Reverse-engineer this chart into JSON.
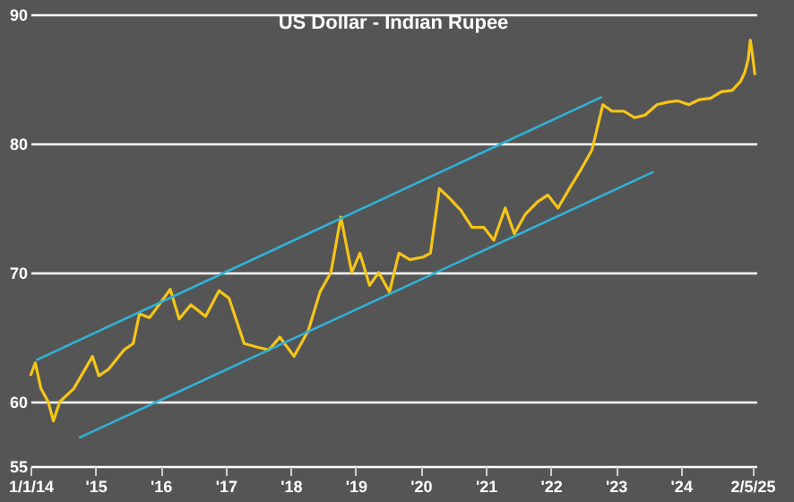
{
  "chart_data": {
    "type": "line",
    "title": "US Dollar - Indian Rupee",
    "xlim": [
      "2014-01-01",
      "2025-02-28"
    ],
    "ylim": [
      55,
      90
    ],
    "yticks": [
      55,
      60,
      70,
      80,
      90
    ],
    "xticks": [
      {
        "value": "2014-01-01",
        "label": "1/1/14"
      },
      {
        "value": "2015-01-01",
        "label": "'15"
      },
      {
        "value": "2016-01-01",
        "label": "'16"
      },
      {
        "value": "2017-01-01",
        "label": "'17"
      },
      {
        "value": "2018-01-01",
        "label": "'18"
      },
      {
        "value": "2019-01-01",
        "label": "'19"
      },
      {
        "value": "2020-01-01",
        "label": "'20"
      },
      {
        "value": "2021-01-01",
        "label": "'21"
      },
      {
        "value": "2022-01-01",
        "label": "'22"
      },
      {
        "value": "2023-01-01",
        "label": "'23"
      },
      {
        "value": "2024-01-01",
        "label": "'24"
      },
      {
        "value": "2025-02-05",
        "label": "2/5/25"
      }
    ],
    "grid": "y",
    "series": [
      {
        "color": "#f5c518",
        "x": [
          "2014-01-01",
          "2014-01-28",
          "2014-03-01",
          "2014-04-10",
          "2014-05-10",
          "2014-06-15",
          "2014-09-01",
          "2014-12-15",
          "2015-01-20",
          "2015-03-15",
          "2015-06-10",
          "2015-08-01",
          "2015-09-05",
          "2015-11-01",
          "2016-02-25",
          "2016-04-15",
          "2016-06-20",
          "2016-09-10",
          "2016-11-25",
          "2017-01-20",
          "2017-04-15",
          "2017-07-01",
          "2017-09-01",
          "2017-11-01",
          "2018-01-20",
          "2018-04-10",
          "2018-06-15",
          "2018-08-15",
          "2018-10-10",
          "2018-12-10",
          "2019-01-25",
          "2019-03-20",
          "2019-05-10",
          "2019-07-10",
          "2019-09-01",
          "2019-11-01",
          "2020-01-15",
          "2020-02-25",
          "2020-04-15",
          "2020-06-15",
          "2020-08-15",
          "2020-10-15",
          "2020-12-20",
          "2021-02-15",
          "2021-04-20",
          "2021-06-10",
          "2021-08-10",
          "2021-10-20",
          "2021-12-15",
          "2022-02-10",
          "2022-04-15",
          "2022-06-20",
          "2022-08-20",
          "2022-10-20",
          "2022-12-10",
          "2023-02-15",
          "2023-04-15",
          "2023-06-15",
          "2023-08-20",
          "2023-10-20",
          "2023-12-15",
          "2024-02-15",
          "2024-04-15",
          "2024-06-15",
          "2024-08-15",
          "2024-10-15",
          "2024-12-01",
          "2024-12-25",
          "2025-01-13",
          "2025-01-25",
          "2025-02-05",
          "2025-02-20"
        ],
        "values": [
          62.0,
          63.0,
          61.0,
          60.0,
          58.5,
          60.0,
          61.0,
          63.5,
          62.0,
          62.5,
          64.0,
          64.5,
          66.8,
          66.5,
          68.7,
          66.4,
          67.5,
          66.6,
          68.6,
          68.0,
          64.5,
          64.2,
          64.0,
          65.0,
          63.5,
          65.5,
          68.5,
          70.0,
          74.3,
          70.0,
          71.5,
          69.0,
          70.0,
          68.5,
          71.5,
          71.0,
          71.2,
          71.5,
          76.5,
          75.7,
          74.8,
          73.5,
          73.5,
          72.5,
          75.0,
          73.0,
          74.5,
          75.5,
          76.0,
          75.0,
          76.5,
          78.0,
          79.5,
          83.0,
          82.5,
          82.5,
          82.0,
          82.2,
          83.0,
          83.2,
          83.3,
          83.0,
          83.4,
          83.5,
          84.0,
          84.1,
          84.8,
          85.5,
          86.5,
          88.0,
          87.0,
          85.3
        ]
      },
      {
        "type": "line",
        "color": "#2fb3d6",
        "x": [
          "2014-02-01",
          "2022-10-15"
        ],
        "values": [
          63.2,
          83.6
        ]
      },
      {
        "type": "line",
        "color": "#2fb3d6",
        "x": [
          "2014-10-01",
          "2023-08-01"
        ],
        "values": [
          57.2,
          77.8
        ]
      }
    ]
  }
}
